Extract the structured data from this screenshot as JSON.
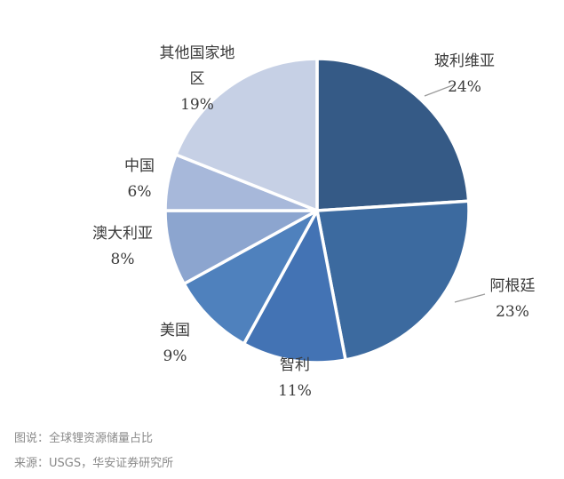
{
  "chart_data": {
    "type": "pie",
    "slices": [
      {
        "label": "玻利维亚",
        "value": 24,
        "value_text": "24%",
        "color": "#355a86"
      },
      {
        "label": "阿根廷",
        "value": 23,
        "value_text": "23%",
        "color": "#3c6a9f"
      },
      {
        "label": "智利",
        "value": 11,
        "value_text": "11%",
        "color": "#4373b4"
      },
      {
        "label": "美国",
        "value": 9,
        "value_text": "9%",
        "color": "#4f81bd"
      },
      {
        "label": "澳大利亚",
        "value": 8,
        "value_text": "8%",
        "color": "#8ca5cf"
      },
      {
        "label": "中国",
        "value": 6,
        "value_text": "6%",
        "color": "#a7b8da"
      },
      {
        "label": "其他国家地\n区",
        "value": 19,
        "value_text": "19%",
        "color": "#c6d0e5"
      }
    ]
  },
  "caption": {
    "figure": "图说：全球锂资源储量占比",
    "source": "来源：USGS，华安证券研究所"
  }
}
